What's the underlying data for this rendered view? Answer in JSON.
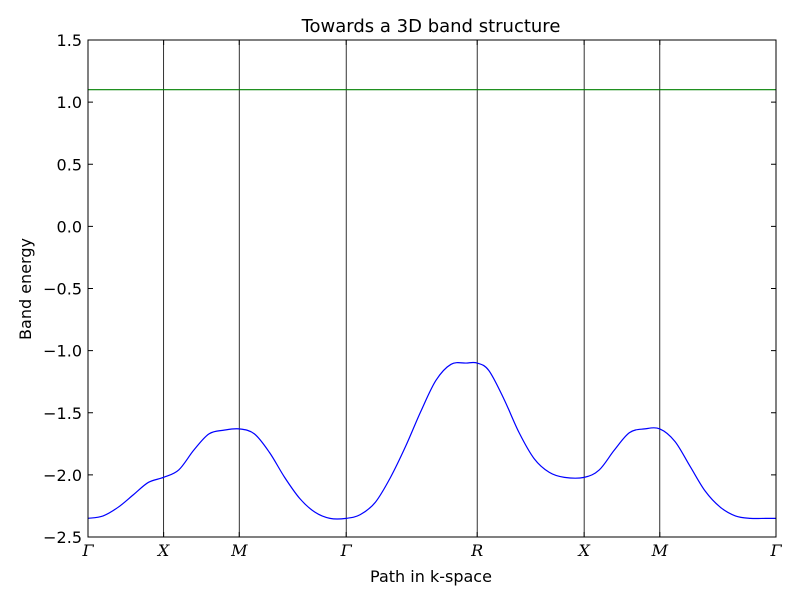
{
  "chart_data": {
    "type": "line",
    "title": "Towards a 3D band structure",
    "xlabel": "Path in k-space",
    "ylabel": "Band energy",
    "ylim": [
      -2.5,
      1.5
    ],
    "xlim": [
      0,
      4.5485
    ],
    "yticks": [
      -2.5,
      -2.0,
      -1.5,
      -1.0,
      -0.5,
      0.0,
      0.5,
      1.0,
      1.5
    ],
    "ytick_labels": [
      "−2.5",
      "−2.0",
      "−1.5",
      "−1.0",
      "−0.5",
      "0.0",
      "0.5",
      "1.0",
      "1.5"
    ],
    "kpoints": [
      {
        "label": "Γ",
        "x": 0
      },
      {
        "label": "X",
        "x": 0.5
      },
      {
        "label": "M",
        "x": 1.0
      },
      {
        "label": "Γ",
        "x": 1.7071
      },
      {
        "label": "R",
        "x": 2.5731
      },
      {
        "label": "X",
        "x": 3.2802
      },
      {
        "label": "M",
        "x": 3.7802
      },
      {
        "label": "Γ",
        "x": 4.5485
      }
    ],
    "series": [
      {
        "color": "#0000ff",
        "x": [
          0,
          0.1,
          0.2,
          0.3,
          0.4,
          0.5,
          0.6,
          0.7,
          0.8,
          0.9,
          1.0,
          1.1,
          1.2,
          1.3,
          1.4,
          1.5,
          1.6,
          1.7071,
          1.8,
          1.9,
          2.0,
          2.1,
          2.2,
          2.3,
          2.4,
          2.5,
          2.5731,
          2.65,
          2.75,
          2.85,
          2.95,
          3.05,
          3.15,
          3.2802,
          3.38,
          3.48,
          3.58,
          3.68,
          3.7802,
          3.88,
          3.98,
          4.08,
          4.18,
          4.28,
          4.38,
          4.48,
          4.5485
        ],
        "y": [
          -2.35,
          -2.33,
          -2.26,
          -2.16,
          -2.06,
          -2.02,
          -1.96,
          -1.8,
          -1.67,
          -1.64,
          -1.63,
          -1.67,
          -1.82,
          -2.02,
          -2.19,
          -2.3,
          -2.35,
          -2.35,
          -2.32,
          -2.22,
          -2.02,
          -1.77,
          -1.49,
          -1.24,
          -1.11,
          -1.1,
          -1.1,
          -1.16,
          -1.39,
          -1.66,
          -1.87,
          -1.98,
          -2.02,
          -2.02,
          -1.96,
          -1.8,
          -1.66,
          -1.63,
          -1.63,
          -1.73,
          -1.93,
          -2.13,
          -2.26,
          -2.33,
          -2.35,
          -2.35,
          -2.35
        ]
      },
      {
        "color": "#008000",
        "x": [
          0,
          4.5485
        ],
        "y": [
          1.1,
          1.1
        ]
      }
    ],
    "grid": false,
    "vertical_lines_at_kpoints": true
  }
}
